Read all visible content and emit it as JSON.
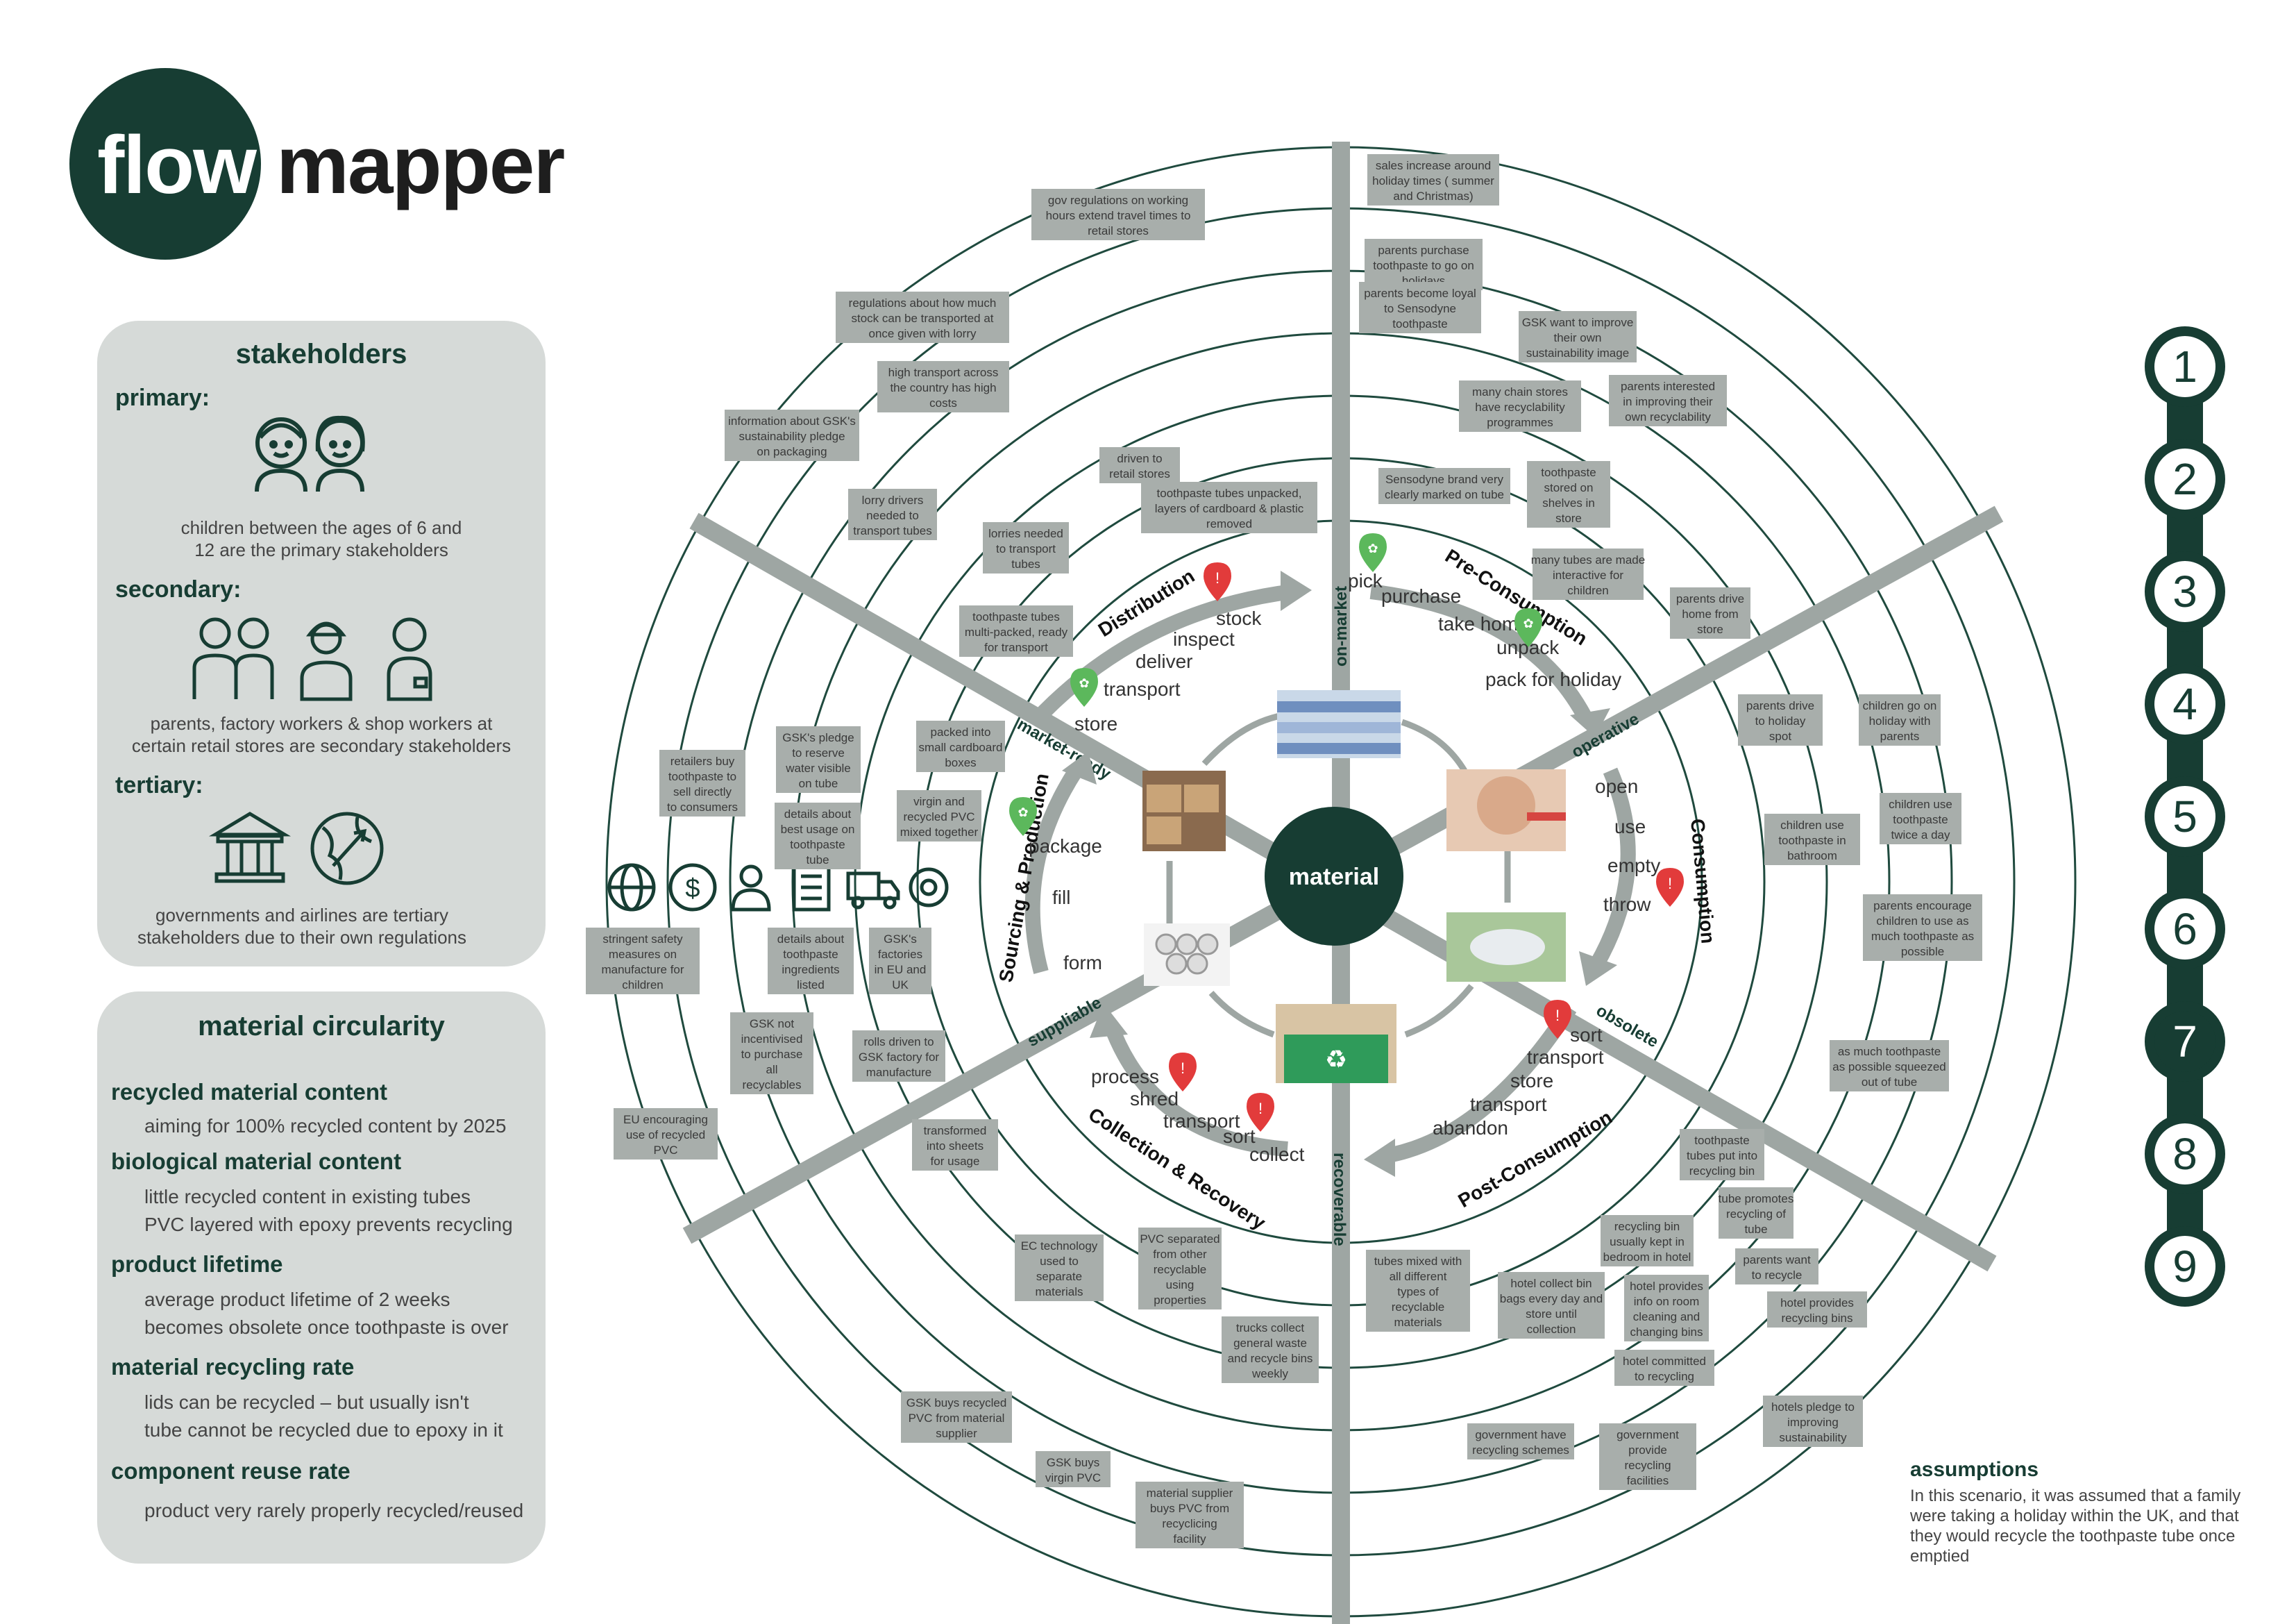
{
  "logo": {
    "part1": "flow",
    "part2": "mapper"
  },
  "stakeholders": {
    "title": "stakeholders",
    "primary_h": "primary:",
    "primary_t": [
      "children between the ages of 6 and",
      "12 are the primary stakeholders"
    ],
    "secondary_h": "secondary:",
    "secondary_t": [
      "parents, factory workers & shop workers at",
      "certain retail stores are secondary stakeholders"
    ],
    "tertiary_h": "tertiary:",
    "tertiary_t": [
      "governments and airlines are tertiary",
      "stakeholders due to their own regulations"
    ]
  },
  "circularity": {
    "title": "material circularity",
    "items": [
      {
        "h": "recycled material content",
        "t": [
          "aiming for 100% recycled content by 2025"
        ]
      },
      {
        "h": "biological material content",
        "t": [
          "little recycled content in existing tubes",
          "PVC layered with epoxy prevents recycling"
        ]
      },
      {
        "h": "product lifetime",
        "t": [
          "average product lifetime of 2 weeks",
          "becomes obsolete once toothpaste is over"
        ]
      },
      {
        "h": "material recycling rate",
        "t": [
          "lids can be recycled – but usually isn't",
          "tube cannot be recycled due to epoxy in it"
        ]
      },
      {
        "h": "component reuse rate",
        "t": [
          "product very rarely properly recycled/reused"
        ]
      }
    ]
  },
  "steps": [
    "1",
    "2",
    "3",
    "4",
    "5",
    "6",
    "7",
    "8",
    "9"
  ],
  "active_step": "7",
  "assumptions": {
    "title": "assumptions",
    "text": "In this scenario, it was assumed that a family were taking a holiday within the UK, and that they would recycle the toothpaste tube once emptied"
  },
  "center": "material",
  "axis_labels": {
    "on_market": "on-market",
    "operative": "operative",
    "obsolete": "obsolete",
    "recoverable": "recoverable",
    "suppliable": "suppliable",
    "market_ready": "market-ready"
  },
  "phases": {
    "distribution": "Distribution",
    "pre_consumption": "Pre-Consumption",
    "consumption": "Consumption",
    "post_consumption": "Post-Consumption",
    "collection": "Collection & Recovery",
    "sourcing": "Sourcing & Production"
  },
  "verbs": {
    "distribution": [
      "stock",
      "inspect",
      "deliver",
      "transport",
      "store"
    ],
    "pre": [
      "pick",
      "purchase",
      "take home",
      "unpack",
      "pack for holiday"
    ],
    "consumption": [
      "open",
      "use",
      "empty",
      "throw"
    ],
    "post": [
      "sort",
      "transport",
      "store",
      "transport",
      "abandon"
    ],
    "collection": [
      "process",
      "shred",
      "transport",
      "sort",
      "collect"
    ],
    "sourcing": [
      "package",
      "fill",
      "form"
    ]
  },
  "notes": [
    "sales increase around holiday times ( summer and Christmas)",
    "gov regulations on working hours extend travel times to retail stores",
    "parents purchase toothpaste to go on holidays",
    "parents become loyal to Sensodyne toothpaste",
    "GSK want to improve their own sustainability image",
    "regulations about how much stock can be transported at once given with lorry",
    "high transport across the country has high costs",
    "many chain stores have recyclability programmes",
    "parents interested in improving their own recyclability",
    "information about GSK's sustainability pledge on packaging",
    "driven to retail stores",
    "toothpaste tubes unpacked, layers of cardboard & plastic removed",
    "Sensodyne brand very clearly marked on tube",
    "toothpaste stored on shelves in store",
    "lorry drivers needed to transport tubes",
    "lorries needed to transport tubes",
    "many tubes are made interactive for children",
    "parents drive home from store",
    "toothpaste tubes multi-packed, ready for transport",
    "retailers buy toothpaste to sell directly to consumers",
    "GSK's pledge to reserve water visible on tube",
    "packed into small cardboard boxes",
    "parents drive to holiday spot",
    "children go on holiday with parents",
    "virgin and recycled PVC mixed together",
    "details about best usage on toothpaste tube",
    "children use toothpaste in bathroom",
    "children use toothpaste twice a day",
    "stringent safety measures on manufacture for children",
    "details about toothpaste ingredients listed",
    "GSK's factories in EU and UK",
    "parents encourage children to use as much toothpaste as possible",
    "GSK not incentivised to purchase all recyclables",
    "rolls driven to GSK factory for manufacture",
    "as much toothpaste as possible squeezed out of tube",
    "EU encouraging use of recycled PVC",
    "transformed into sheets for usage",
    "toothpaste tubes put into recycling bin",
    "tube promotes recycling of tube",
    "EC technology used to separate materials",
    "PVC separated from other recyclable using properties",
    "recycling bin usually kept in bedroom in hotel",
    "parents want to recycle",
    "tubes mixed with all different types of recyclable materials",
    "hotel collect bin bags every day and store until collection",
    "hotel provides info on room cleaning and changing bins",
    "hotel provides recycling bins",
    "trucks collect general waste and recycle bins weekly",
    "hotel committed to recycling",
    "GSK buys recycled PVC from material supplier",
    "hotels pledge to improving sustainability",
    "government have recycling schemes",
    "government provide recycling facilities",
    "GSK buys virgin PVC",
    "material supplier buys PVC from recyclicing facility"
  ]
}
